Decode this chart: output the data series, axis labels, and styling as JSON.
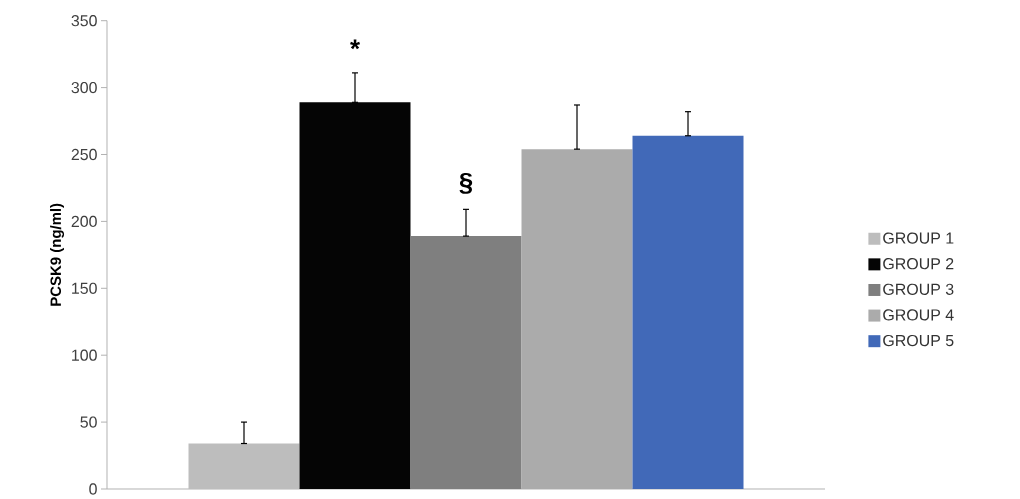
{
  "chart_data": {
    "type": "bar",
    "ylabel": "PCSK9 (ng/ml)",
    "categories": [
      null
    ],
    "series": [
      {
        "name": "GROUP 1",
        "color": "#bdbdbd",
        "values": [
          34
        ],
        "errors": [
          [
            34,
            50
          ]
        ]
      },
      {
        "name": "GROUP 2",
        "color": "#050505",
        "values": [
          289
        ],
        "errors": [
          [
            289,
            311
          ]
        ]
      },
      {
        "name": "GROUP 3",
        "color": "#7f7f7f",
        "values": [
          189
        ],
        "errors": [
          [
            189,
            209
          ]
        ]
      },
      {
        "name": "GROUP 4",
        "color": "#ababab",
        "values": [
          254
        ],
        "errors": [
          [
            254,
            287
          ]
        ]
      },
      {
        "name": "GROUP 5",
        "color": "#4169b8",
        "values": [
          264
        ],
        "errors": [
          [
            264,
            282
          ]
        ]
      }
    ],
    "annotations": [
      "*",
      "§"
    ],
    "ylim": [
      0,
      350
    ],
    "yticks": [
      0,
      50,
      100,
      150,
      200,
      250,
      300,
      350
    ],
    "grid": false,
    "legend": "right"
  }
}
